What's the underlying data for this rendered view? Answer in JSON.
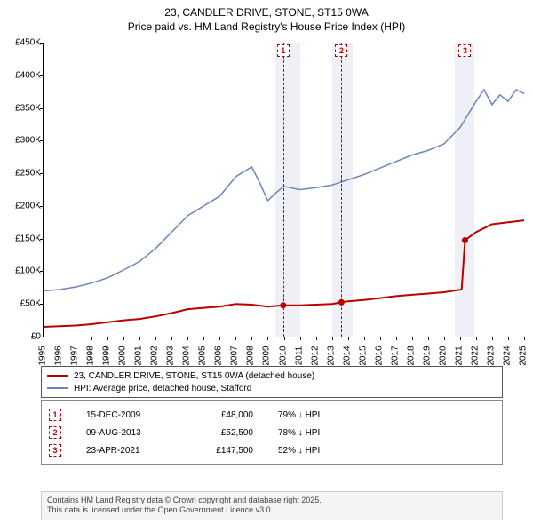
{
  "title": {
    "line1": "23, CANDLER DRIVE, STONE, ST15 0WA",
    "line2": "Price paid vs. HM Land Registry's House Price Index (HPI)"
  },
  "chart": {
    "type": "line",
    "background_color": "#ffffff",
    "band_color": "#eef0f6",
    "vline_color": "#bb0000",
    "y_axis": {
      "min": 0,
      "max": 450000,
      "step": 50000,
      "labels": [
        "£0",
        "£50K",
        "£100K",
        "£150K",
        "£200K",
        "£250K",
        "£300K",
        "£350K",
        "£400K",
        "£450K"
      ]
    },
    "x_axis": {
      "min": 1995,
      "max": 2025,
      "labels": [
        "1995",
        "1996",
        "1997",
        "1998",
        "1999",
        "2000",
        "2001",
        "2002",
        "2003",
        "2004",
        "2005",
        "2006",
        "2007",
        "2008",
        "2009",
        "2010",
        "2011",
        "2012",
        "2013",
        "2014",
        "2015",
        "2016",
        "2017",
        "2018",
        "2019",
        "2020",
        "2021",
        "2022",
        "2023",
        "2024",
        "2025"
      ]
    },
    "series": [
      {
        "name": "23, CANDLER DRIVE, STONE, ST15 0WA (detached house)",
        "color": "#bb0000",
        "width": 2,
        "data": [
          [
            1995,
            15000
          ],
          [
            1996,
            16000
          ],
          [
            1997,
            17000
          ],
          [
            1998,
            19000
          ],
          [
            1999,
            22000
          ],
          [
            2000,
            25000
          ],
          [
            2001,
            27000
          ],
          [
            2002,
            31000
          ],
          [
            2003,
            36000
          ],
          [
            2004,
            42000
          ],
          [
            2005,
            44000
          ],
          [
            2006,
            46000
          ],
          [
            2007,
            50000
          ],
          [
            2008,
            49000
          ],
          [
            2009,
            46000
          ],
          [
            2009.96,
            48000
          ],
          [
            2011,
            48000
          ],
          [
            2012,
            49000
          ],
          [
            2013,
            50000
          ],
          [
            2013.6,
            52500
          ],
          [
            2014,
            54000
          ],
          [
            2015,
            56000
          ],
          [
            2016,
            59000
          ],
          [
            2017,
            62000
          ],
          [
            2018,
            64000
          ],
          [
            2019,
            66000
          ],
          [
            2020,
            68000
          ],
          [
            2021.1,
            72000
          ],
          [
            2021.31,
            147500
          ],
          [
            2022,
            160000
          ],
          [
            2023,
            172000
          ],
          [
            2024,
            175000
          ],
          [
            2025,
            178000
          ]
        ]
      },
      {
        "name": "HPI: Average price, detached house, Stafford",
        "color": "#6d85bb",
        "width": 1.5,
        "data": [
          [
            1995,
            70000
          ],
          [
            1996,
            72000
          ],
          [
            1997,
            76000
          ],
          [
            1998,
            82000
          ],
          [
            1999,
            90000
          ],
          [
            2000,
            102000
          ],
          [
            2001,
            115000
          ],
          [
            2002,
            135000
          ],
          [
            2003,
            160000
          ],
          [
            2004,
            185000
          ],
          [
            2005,
            200000
          ],
          [
            2006,
            215000
          ],
          [
            2007,
            245000
          ],
          [
            2008,
            260000
          ],
          [
            2008.5,
            235000
          ],
          [
            2009,
            208000
          ],
          [
            2009.5,
            220000
          ],
          [
            2010,
            230000
          ],
          [
            2011,
            225000
          ],
          [
            2012,
            228000
          ],
          [
            2013,
            232000
          ],
          [
            2014,
            240000
          ],
          [
            2015,
            248000
          ],
          [
            2016,
            258000
          ],
          [
            2017,
            268000
          ],
          [
            2018,
            278000
          ],
          [
            2019,
            285000
          ],
          [
            2020,
            295000
          ],
          [
            2021,
            320000
          ],
          [
            2022,
            360000
          ],
          [
            2022.5,
            378000
          ],
          [
            2023,
            355000
          ],
          [
            2023.5,
            370000
          ],
          [
            2024,
            360000
          ],
          [
            2024.5,
            378000
          ],
          [
            2025,
            372000
          ]
        ]
      }
    ],
    "event_markers": [
      {
        "x": 2009.96,
        "y": 48000,
        "label": "1"
      },
      {
        "x": 2013.6,
        "y": 52500,
        "label": "2"
      },
      {
        "x": 2021.31,
        "y": 147500,
        "label": "3"
      }
    ],
    "shaded_bands": [
      {
        "start": 2009.5,
        "end": 2011.0
      },
      {
        "start": 2013.0,
        "end": 2014.3
      },
      {
        "start": 2020.7,
        "end": 2021.9
      }
    ]
  },
  "legend": {
    "items": [
      {
        "color": "#bb0000",
        "width": 2,
        "label": "23, CANDLER DRIVE, STONE, ST15 0WA (detached house)"
      },
      {
        "color": "#6d85bb",
        "width": 1.5,
        "label": "HPI: Average price, detached house, Stafford"
      }
    ]
  },
  "events": [
    {
      "n": "1",
      "date": "15-DEC-2009",
      "price": "£48,000",
      "diff": "79% ↓ HPI"
    },
    {
      "n": "2",
      "date": "09-AUG-2013",
      "price": "£52,500",
      "diff": "78% ↓ HPI"
    },
    {
      "n": "3",
      "date": "23-APR-2021",
      "price": "£147,500",
      "diff": "52% ↓ HPI"
    }
  ],
  "footer": {
    "line1": "Contains HM Land Registry data © Crown copyright and database right 2025.",
    "line2": "This data is licensed under the Open Government Licence v3.0."
  }
}
